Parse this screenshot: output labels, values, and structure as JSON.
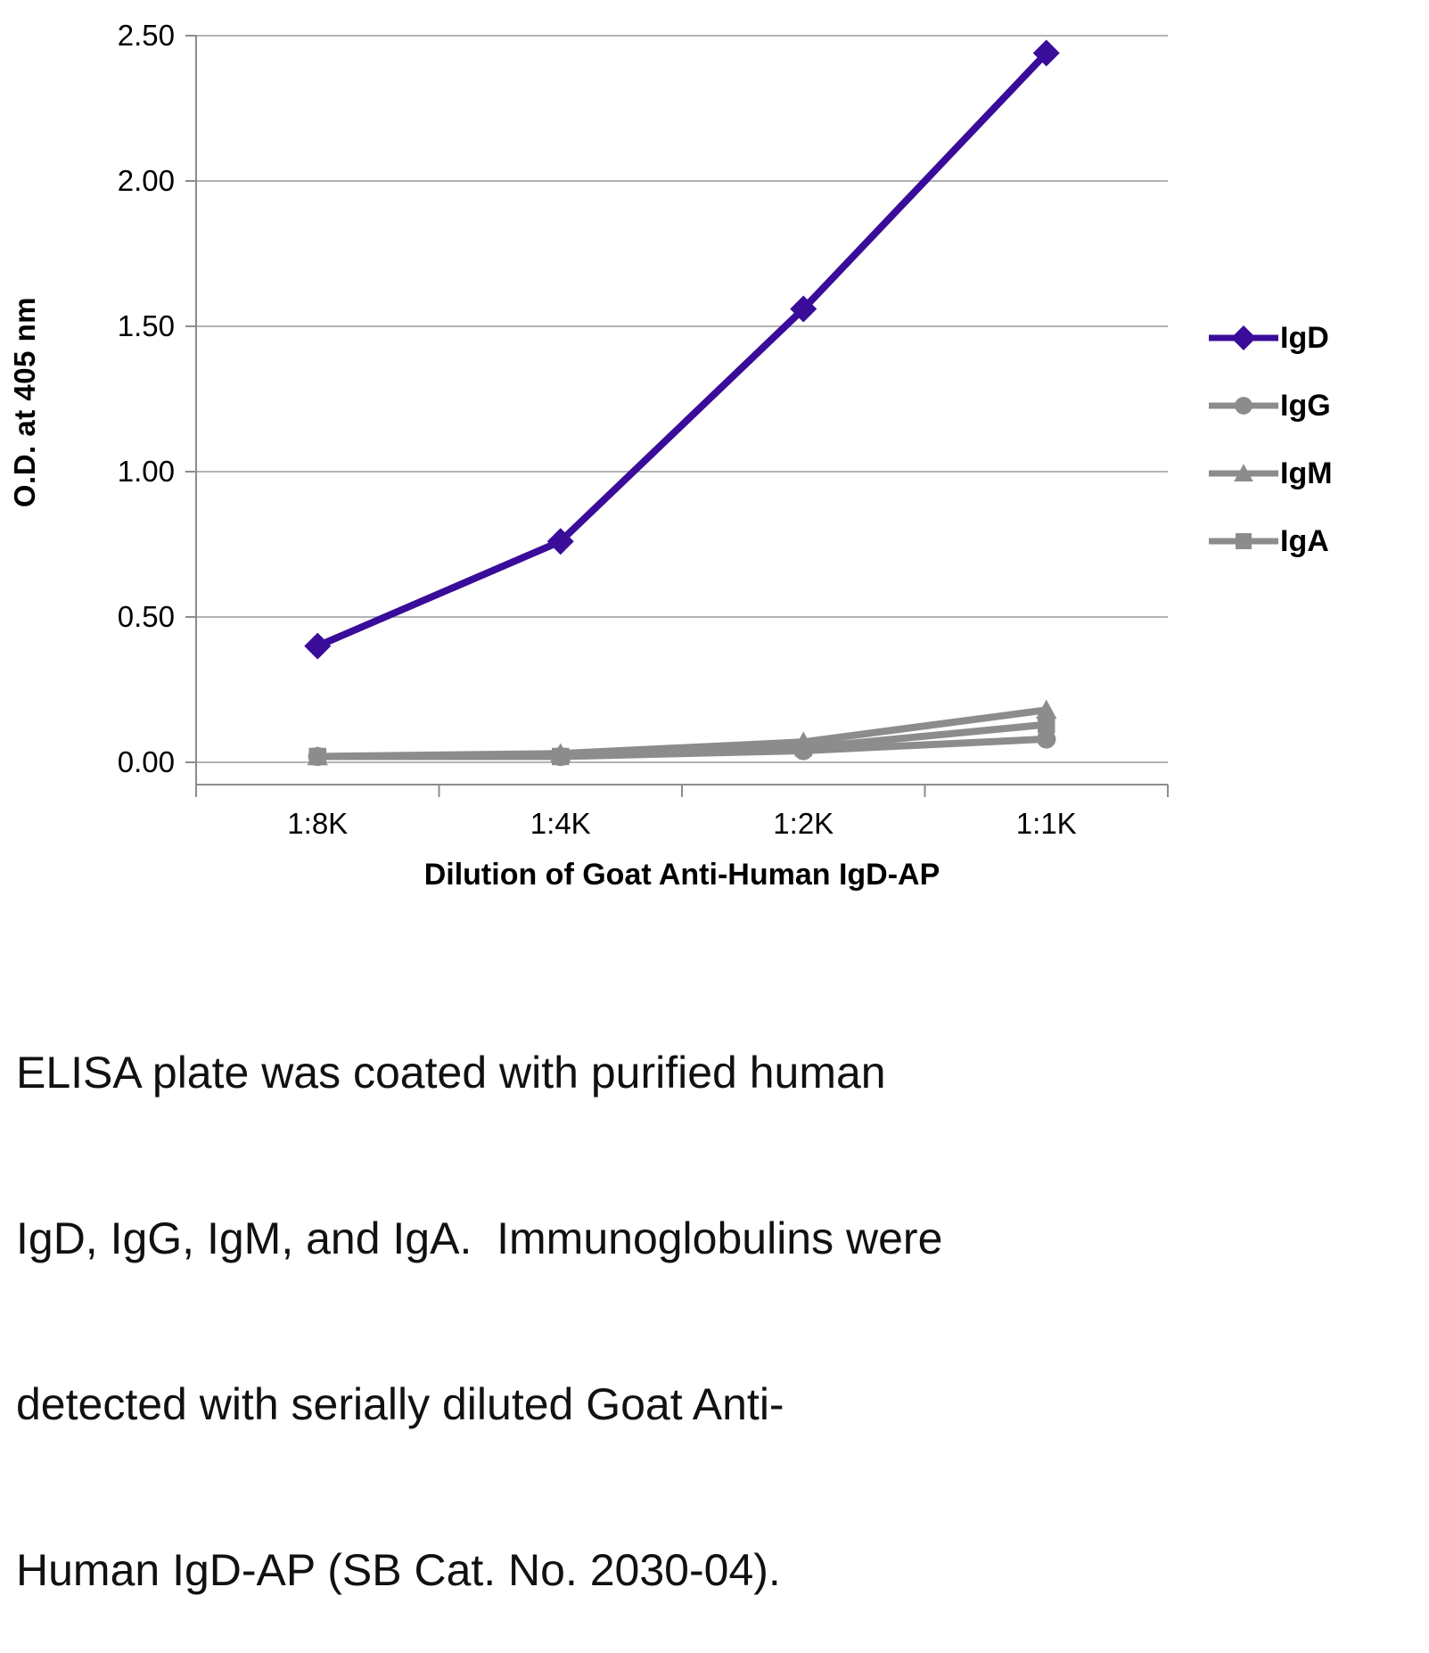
{
  "page": {
    "background": "#ffffff"
  },
  "chart_data": {
    "type": "line",
    "title": "",
    "xlabel": "Dilution of Goat Anti-Human IgD-AP",
    "ylabel": "O.D. at 405 nm",
    "categories": [
      "1:8K",
      "1:4K",
      "1:2K",
      "1:1K"
    ],
    "ylim": [
      0,
      2.5
    ],
    "yticks": [
      0,
      0.5,
      1.0,
      1.5,
      2.0,
      2.5
    ],
    "ytick_labels": [
      "0.00",
      "0.50",
      "1.00",
      "1.50",
      "2.00",
      "2.50"
    ],
    "grid": true,
    "legend_position": "right",
    "series": [
      {
        "name": "IgD",
        "color": "#3a0c9a",
        "marker": "diamond",
        "values": [
          0.4,
          0.76,
          1.56,
          2.44
        ]
      },
      {
        "name": "IgG",
        "color": "#8c8c8c",
        "marker": "circle",
        "values": [
          0.02,
          0.02,
          0.04,
          0.08
        ]
      },
      {
        "name": "IgM",
        "color": "#8c8c8c",
        "marker": "triangle",
        "values": [
          0.02,
          0.03,
          0.07,
          0.18
        ]
      },
      {
        "name": "IgA",
        "color": "#8c8c8c",
        "marker": "square",
        "values": [
          0.02,
          0.02,
          0.05,
          0.13
        ]
      }
    ],
    "colors": {
      "grid": "#b3b3b3",
      "axis": "#8c8c8c",
      "text": "#000000"
    }
  },
  "caption": {
    "lines": [
      "ELISA plate was coated with purified human",
      "IgD, IgG, IgM, and IgA.  Immunoglobulins were",
      "detected with serially diluted Goat Anti-",
      "Human IgD-AP (SB Cat. No. 2030-04)."
    ]
  }
}
